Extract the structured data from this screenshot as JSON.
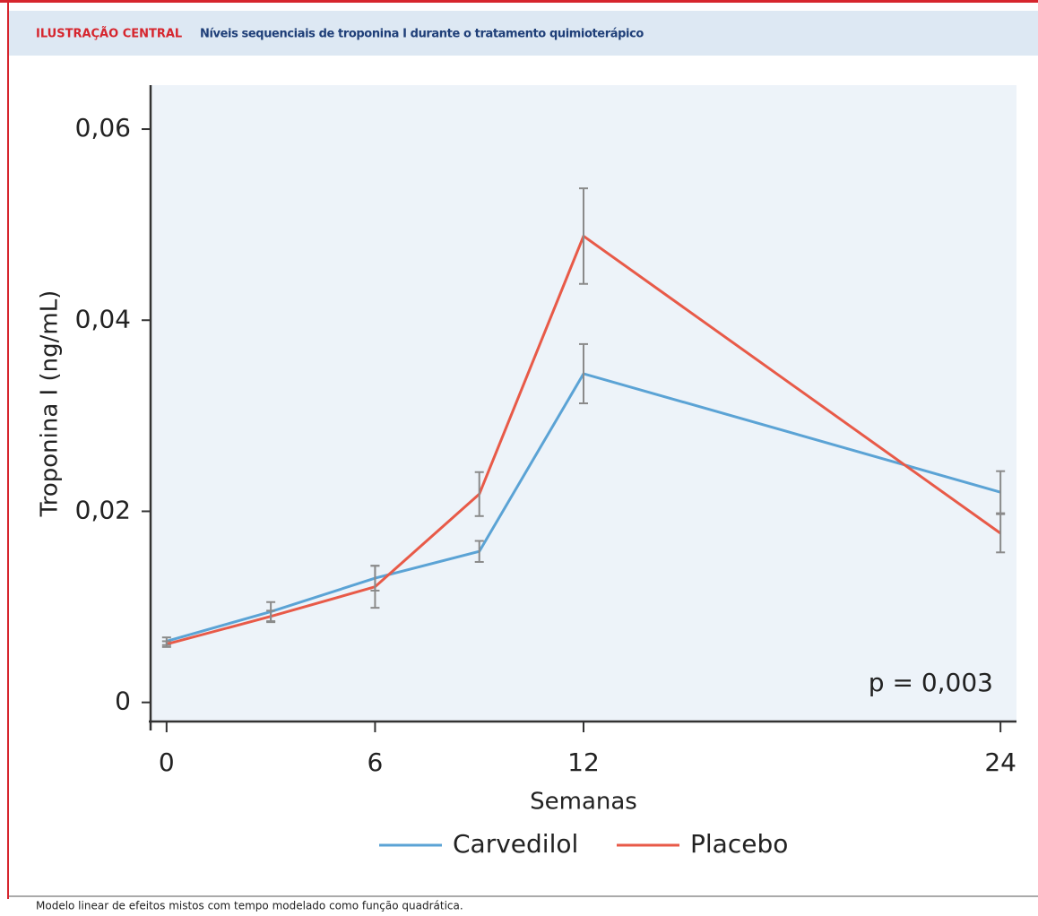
{
  "header": {
    "label": "ILUSTRAÇÃO CENTRAL",
    "title": "Níveis sequenciais de troponina I durante o tratamento quimioterápico"
  },
  "chart_data": {
    "type": "line",
    "xlabel": "Semanas",
    "ylabel": "Troponina I (ng/mL)",
    "annotation": "p = 0,003",
    "x": [
      0,
      3,
      6,
      9,
      12,
      24
    ],
    "series": [
      {
        "name": "Carvedilol",
        "color": "#5ba3d5",
        "values": [
          0.0064,
          0.0095,
          0.013,
          0.0158,
          0.0344,
          0.022
        ],
        "errors": [
          0.0004,
          0.001,
          0.0013,
          0.0011,
          0.0031,
          0.0022
        ]
      },
      {
        "name": "Placebo",
        "color": "#e85a48",
        "values": [
          0.0061,
          0.009,
          0.0121,
          0.0218,
          0.0488,
          0.0177
        ],
        "errors": [
          0.0003,
          0.0006,
          0.0022,
          0.0023,
          0.005,
          0.002
        ]
      }
    ],
    "xlim": [
      -0.46,
      24.46
    ],
    "ylim": [
      -0.002,
      0.0646
    ],
    "xticks": [
      0,
      6,
      12,
      24
    ],
    "yticks": [
      0,
      {
        "value": 0.02,
        "label": "0,02"
      },
      {
        "value": 0.04,
        "label": "0,04"
      },
      {
        "value": 0.06,
        "label": "0,06"
      }
    ],
    "legend": "bottom"
  },
  "footer": "Modelo linear de efeitos mistos com tempo modelado como função quadrática."
}
